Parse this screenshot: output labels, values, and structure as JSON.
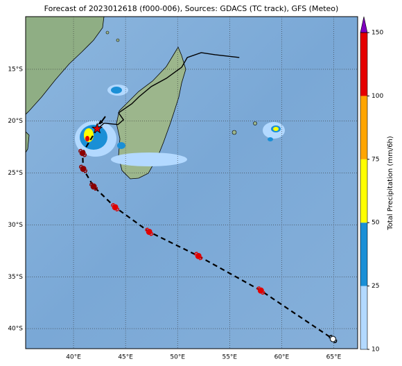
{
  "title": "Forecast of 2023012618 (f000-006), Sources: GDACS (TC track), GFS (Meteo)",
  "map": {
    "lon_range": [
      35.4,
      67.3
    ],
    "lat_range": [
      -9.93,
      -41.93
    ],
    "lon_ticks": [
      {
        "value": 40,
        "label": "40°E"
      },
      {
        "value": 45,
        "label": "45°E"
      },
      {
        "value": 50,
        "label": "50°E"
      },
      {
        "value": 55,
        "label": "55°E"
      },
      {
        "value": 60,
        "label": "60°E"
      },
      {
        "value": 65,
        "label": "65°E"
      }
    ],
    "lat_ticks": [
      {
        "value": -15,
        "label": "15°S"
      },
      {
        "value": -20,
        "label": "20°S"
      },
      {
        "value": -25,
        "label": "25°S"
      },
      {
        "value": -30,
        "label": "30°S"
      },
      {
        "value": -35,
        "label": "35°S"
      },
      {
        "value": -40,
        "label": "40°S"
      }
    ]
  },
  "colorbar": {
    "label": "Total Precipitation (mm/6h)",
    "levels": [
      10,
      25,
      50,
      75,
      100,
      150
    ],
    "colors": [
      "#b3d9ff",
      "#1a8fd6",
      "#ffff00",
      "#ffa500",
      "#e60000"
    ],
    "extend_color": "#8000c0"
  },
  "track": {
    "past": {
      "lon": [
        55.93,
        53.6,
        52.27,
        50.93,
        50.4,
        48.93,
        47.47,
        46.27,
        45.6,
        44.33,
        44.8,
        44.27,
        42.93,
        42.4
      ],
      "lat": [
        -13.87,
        -13.6,
        -13.4,
        -13.87,
        -14.8,
        -15.87,
        -16.67,
        -17.67,
        -18.33,
        -19.2,
        -19.87,
        -20.33,
        -20.2,
        -20.67
      ]
    },
    "current": {
      "lon": 42.27,
      "lat": -20.73
    },
    "forecast": {
      "lon": [
        40.87,
        40.93,
        41.93,
        44.0,
        47.27,
        52.0,
        58.0,
        64.93
      ],
      "lat": [
        -23.07,
        -24.6,
        -26.3,
        -28.3,
        -30.67,
        -33.0,
        -36.33,
        -41.0
      ],
      "colors": [
        "#8b0000",
        "#8b0000",
        "#8b0000",
        "#e00000",
        "#e00000",
        "#e00000",
        "#e00000",
        "#ffffff"
      ]
    }
  }
}
